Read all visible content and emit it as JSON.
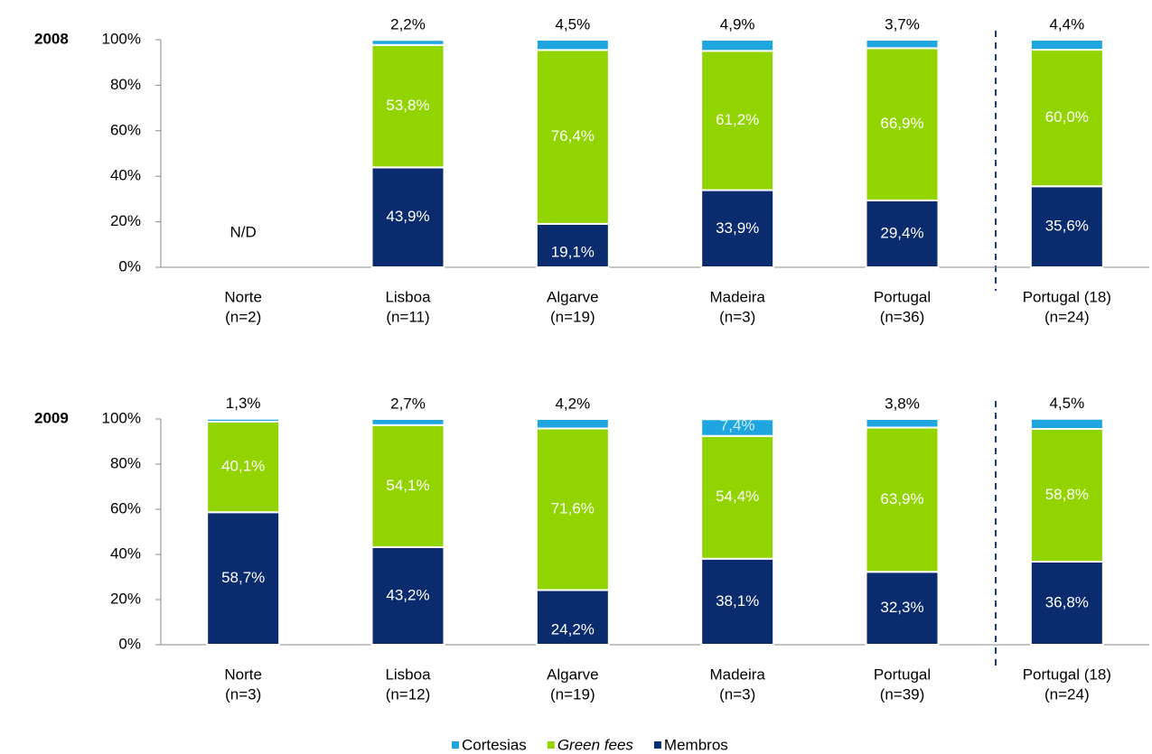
{
  "chart_data": [
    {
      "type": "bar",
      "stacked": true,
      "title": "2008",
      "annotation": "N/D",
      "categories": [
        [
          "Norte",
          "(n=2)"
        ],
        [
          "Lisboa",
          "(n=11)"
        ],
        [
          "Algarve",
          "(n=19)"
        ],
        [
          "Madeira",
          "(n=3)"
        ],
        [
          "Portugal",
          "(n=36)"
        ],
        [
          "Portugal (18)",
          "(n=24)"
        ]
      ],
      "series": [
        {
          "name": "Membros",
          "color": "#0b2b6f",
          "values": [
            null,
            43.9,
            19.1,
            33.9,
            29.4,
            35.6
          ],
          "value_labels": [
            null,
            "43,9%",
            "19,1%",
            "33,9%",
            "29,4%",
            "35,6%"
          ]
        },
        {
          "name": "Green fees",
          "color": "#92d400",
          "values": [
            null,
            53.8,
            76.4,
            61.2,
            66.9,
            60.0
          ],
          "value_labels": [
            null,
            "53,8%",
            "76,4%",
            "61,2%",
            "66,9%",
            "60,0%"
          ]
        },
        {
          "name": "Cortesias",
          "color": "#1fa6e0",
          "values": [
            null,
            2.2,
            4.5,
            4.9,
            3.7,
            4.4
          ],
          "value_labels": [
            null,
            "2,2%",
            "4,5%",
            "4,9%",
            "3,7%",
            "4,4%"
          ]
        }
      ],
      "ylim": [
        0,
        100
      ],
      "yticks": [
        {
          "value": 0,
          "label": "0%"
        },
        {
          "value": 20,
          "label": "20%"
        },
        {
          "value": 40,
          "label": "40%"
        },
        {
          "value": 60,
          "label": "60%"
        },
        {
          "value": 80,
          "label": "80%"
        },
        {
          "value": 100,
          "label": "100%"
        }
      ]
    },
    {
      "type": "bar",
      "stacked": true,
      "title": "2009",
      "categories": [
        [
          "Norte",
          "(n=3)"
        ],
        [
          "Lisboa",
          "(n=12)"
        ],
        [
          "Algarve",
          "(n=19)"
        ],
        [
          "Madeira",
          "(n=3)"
        ],
        [
          "Portugal",
          "(n=39)"
        ],
        [
          "Portugal (18)",
          "(n=24)"
        ]
      ],
      "series": [
        {
          "name": "Membros",
          "color": "#0b2b6f",
          "values": [
            58.7,
            43.2,
            24.2,
            38.1,
            32.3,
            36.8
          ],
          "value_labels": [
            "58,7%",
            "43,2%",
            "24,2%",
            "38,1%",
            "32,3%",
            "36,8%"
          ]
        },
        {
          "name": "Green fees",
          "color": "#92d400",
          "values": [
            40.1,
            54.1,
            71.6,
            54.4,
            63.9,
            58.8
          ],
          "value_labels": [
            "40,1%",
            "54,1%",
            "71,6%",
            "54,4%",
            "63,9%",
            "58,8%"
          ]
        },
        {
          "name": "Cortesias",
          "color": "#1fa6e0",
          "values": [
            1.3,
            2.7,
            4.2,
            7.4,
            3.8,
            4.5
          ],
          "value_labels": [
            "1,3%",
            "2,7%",
            "4,2%",
            "7,4%",
            "3,8%",
            "4,5%"
          ]
        }
      ],
      "ylim": [
        0,
        100
      ],
      "yticks": [
        {
          "value": 0,
          "label": "0%"
        },
        {
          "value": 20,
          "label": "20%"
        },
        {
          "value": 40,
          "label": "40%"
        },
        {
          "value": 60,
          "label": "60%"
        },
        {
          "value": 80,
          "label": "80%"
        },
        {
          "value": 100,
          "label": "100%"
        }
      ]
    }
  ]
}
